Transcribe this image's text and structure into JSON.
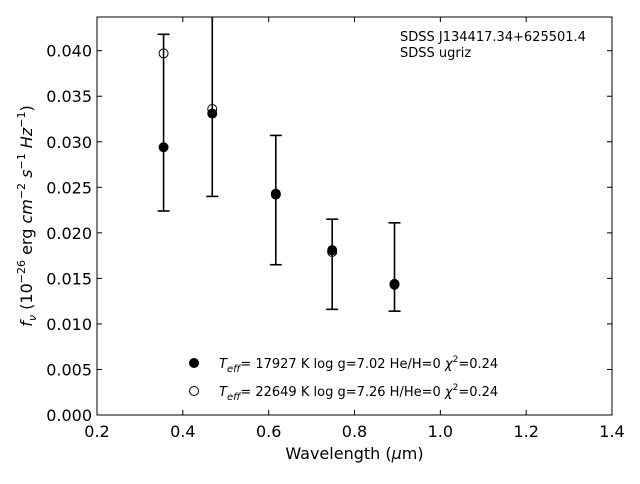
{
  "chart_data": {
    "type": "scatter",
    "annotation_lines": [
      "SDSS J134417.34+625501.4",
      "SDSS ugriz"
    ],
    "xlabel": "Wavelength (μm)",
    "ylabel": "f_ν (10^-26 erg cm^-2 s^-1 Hz^-1)",
    "xlim": [
      0.2,
      1.4
    ],
    "ylim": [
      0.0,
      0.0437
    ],
    "xticks": [
      0.2,
      0.4,
      0.6,
      0.8,
      1.0,
      1.2,
      1.4
    ],
    "xtick_labels": [
      "0.2",
      "0.4",
      "0.6",
      "0.8",
      "1.0",
      "1.2",
      "1.4"
    ],
    "yticks": [
      0.0,
      0.005,
      0.01,
      0.015,
      0.02,
      0.025,
      0.03,
      0.035,
      0.04
    ],
    "ytick_labels": [
      "0.000",
      "0.005",
      "0.010",
      "0.015",
      "0.020",
      "0.025",
      "0.030",
      "0.035",
      "0.040"
    ],
    "grid": false,
    "legend_position": "bottom-center",
    "observed": {
      "x": [
        0.3551,
        0.4686,
        0.6166,
        0.748,
        0.8932
      ],
      "y": [
        0.0294,
        0.0331,
        0.0242,
        0.0181,
        0.0143
      ],
      "err_low": [
        0.0224,
        0.024,
        0.0165,
        0.0116,
        0.0114
      ],
      "err_high": [
        0.0418,
        0.044,
        0.0307,
        0.0215,
        0.0211
      ]
    },
    "series": [
      {
        "name": "T_eff= 17927 K  log g=7.02  He/H=0  χ²=0.24",
        "marker": "filled-circle",
        "x": [
          0.3551,
          0.4686,
          0.6166,
          0.748,
          0.8932
        ],
        "y": [
          0.0294,
          0.0331,
          0.0242,
          0.0181,
          0.0143
        ]
      },
      {
        "name": "T_eff= 22649 K  log g=7.26  H/He=0  χ²=0.24",
        "marker": "open-circle",
        "x": [
          0.3551,
          0.4686,
          0.6166,
          0.748,
          0.8932
        ],
        "y": [
          0.0397,
          0.0336,
          0.0243,
          0.0179,
          0.0144
        ]
      }
    ]
  },
  "colors": {
    "ink": "#000000",
    "background": "#ffffff"
  }
}
